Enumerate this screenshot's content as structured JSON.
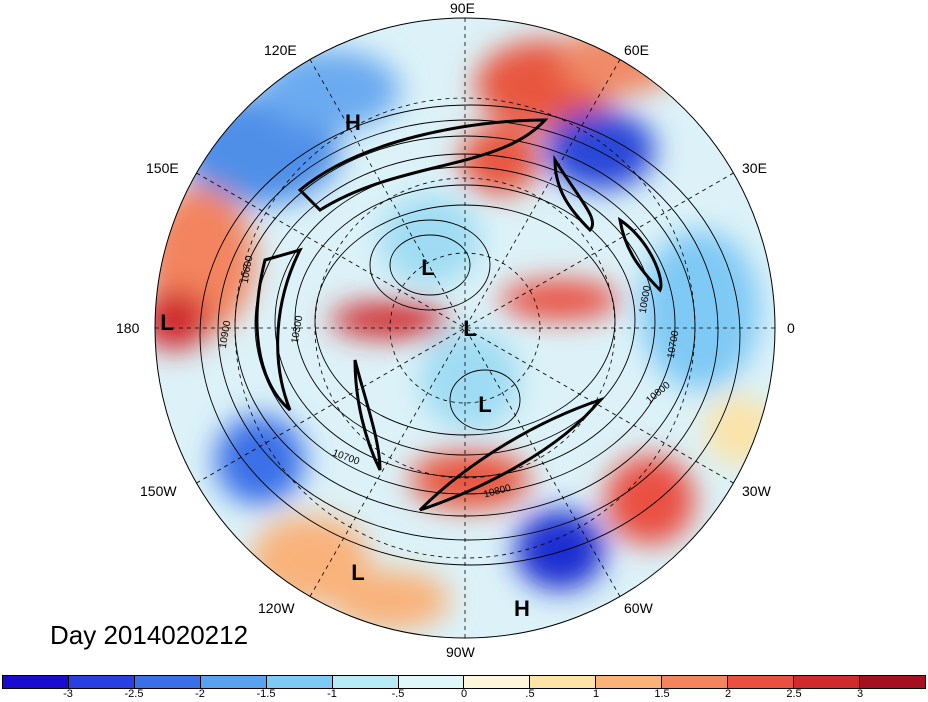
{
  "longitude_labels": {
    "deg90e": "90E",
    "deg60e": "60E",
    "deg120e": "120E",
    "deg150e": "150E",
    "deg30e": "30E",
    "deg180": "180",
    "deg0": "0",
    "deg150w": "150W",
    "deg30w": "30W",
    "deg120w": "120W",
    "deg60w": "60W",
    "deg90w": "90W"
  },
  "pressure_centers": [
    {
      "label": "H",
      "name": "high-center-east-asia"
    },
    {
      "label": "L",
      "name": "low-center-siberia"
    },
    {
      "label": "L",
      "name": "low-center-dateline"
    },
    {
      "label": "L",
      "name": "low-center-pole"
    },
    {
      "label": "L",
      "name": "low-center-hudson-bay"
    },
    {
      "label": "L",
      "name": "low-center-east-pacific"
    },
    {
      "label": "H",
      "name": "high-center-caribbean"
    }
  ],
  "contour_labels": [
    "10600",
    "10300",
    "10900",
    "10700",
    "10600",
    "10700",
    "10800",
    "10800"
  ],
  "day_label": "Day 2014020212",
  "colorbar": {
    "colors": [
      "#1a0bd1",
      "#2a3fe0",
      "#3b6fe8",
      "#5aa2f0",
      "#7fc9f5",
      "#b7ecf7",
      "#e0f7fa",
      "#fdf6dc",
      "#fce3a8",
      "#f9b27a",
      "#f3845e",
      "#ea4f42",
      "#d02a2e",
      "#a50f1f"
    ],
    "tick_labels": [
      "-3",
      "-2.5",
      "-2",
      "-1.5",
      "-1",
      "-.5",
      "0",
      ".5",
      "1",
      "1.5",
      "2",
      "2.5",
      "3"
    ]
  }
}
